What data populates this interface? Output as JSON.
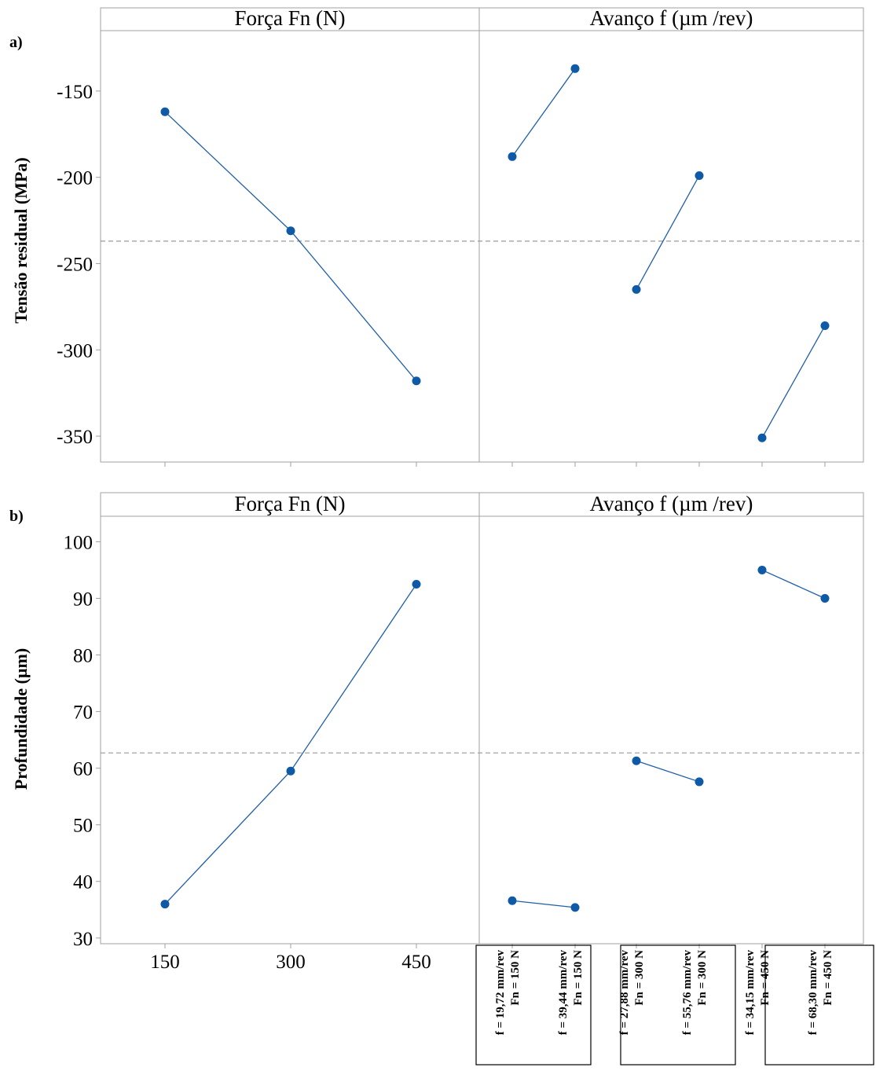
{
  "chart_data": [
    {
      "type": "line",
      "panel_label": "a)",
      "ylabel": "Tensão residual (MPa)",
      "yticks": [
        -150,
        -200,
        -250,
        -300,
        -350
      ],
      "ylim": [
        -365,
        -115
      ],
      "reference_line": -237,
      "grid": false,
      "subplots": [
        {
          "title": "Força Fn (N)",
          "x": [
            150,
            300,
            450
          ],
          "series": [
            {
              "values": [
                -162,
                -231,
                -318
              ]
            }
          ]
        },
        {
          "title": "Avanço f (µm /rev)",
          "groups": [
            {
              "categories": [
                "f = 19,72 mm/rev / Fn = 150 N",
                "f = 39,44 mm/rev / Fn = 150 N"
              ],
              "values": [
                -188,
                -137
              ]
            },
            {
              "categories": [
                "f = 27,88 mm/rev / Fn = 300 N",
                "f = 55,76 mm/rev / Fn = 300 N"
              ],
              "values": [
                -265,
                -199
              ]
            },
            {
              "categories": [
                "f = 34,15 mm/rev / Fn = 450 N",
                "f = 68,30 mm/rev / Fn = 450 N"
              ],
              "values": [
                -351,
                -286
              ]
            }
          ]
        }
      ]
    },
    {
      "type": "line",
      "panel_label": "b)",
      "ylabel": "Profundidade (µm)",
      "yticks": [
        30,
        40,
        50,
        60,
        70,
        80,
        90,
        100
      ],
      "ylim": [
        29,
        104.5
      ],
      "reference_line": 62.7,
      "grid": false,
      "subplots": [
        {
          "title": "Força Fn (N)",
          "x": [
            150,
            300,
            450
          ],
          "xticks": [
            "150",
            "300",
            "450"
          ],
          "series": [
            {
              "values": [
                36,
                59.5,
                92.5
              ]
            }
          ]
        },
        {
          "title": "Avanço f (µm /rev)",
          "groups": [
            {
              "labels": [
                [
                  "f = 19,72 mm/rev",
                  "Fn = 150 N"
                ],
                [
                  "f = 39,44 mm/rev",
                  "Fn = 150 N"
                ]
              ],
              "values": [
                36.6,
                35.4
              ]
            },
            {
              "labels": [
                [
                  "f = 27,88 mm/rev",
                  "Fn = 300 N"
                ],
                [
                  "f = 55,76 mm/rev",
                  "Fn = 300 N"
                ]
              ],
              "values": [
                61.3,
                57.6
              ]
            },
            {
              "labels": [
                [
                  "f = 34,15 mm/rev",
                  "Fn = 450 N"
                ],
                [
                  "f = 68,30 mm/rev",
                  "Fn = 450 N"
                ]
              ],
              "values": [
                95,
                90
              ]
            }
          ]
        }
      ]
    }
  ],
  "colors": {
    "series": "#1f5fa8",
    "marker": "#0e5aa6",
    "reference": "#9a9a9a",
    "frame": "#a0a0a0"
  }
}
